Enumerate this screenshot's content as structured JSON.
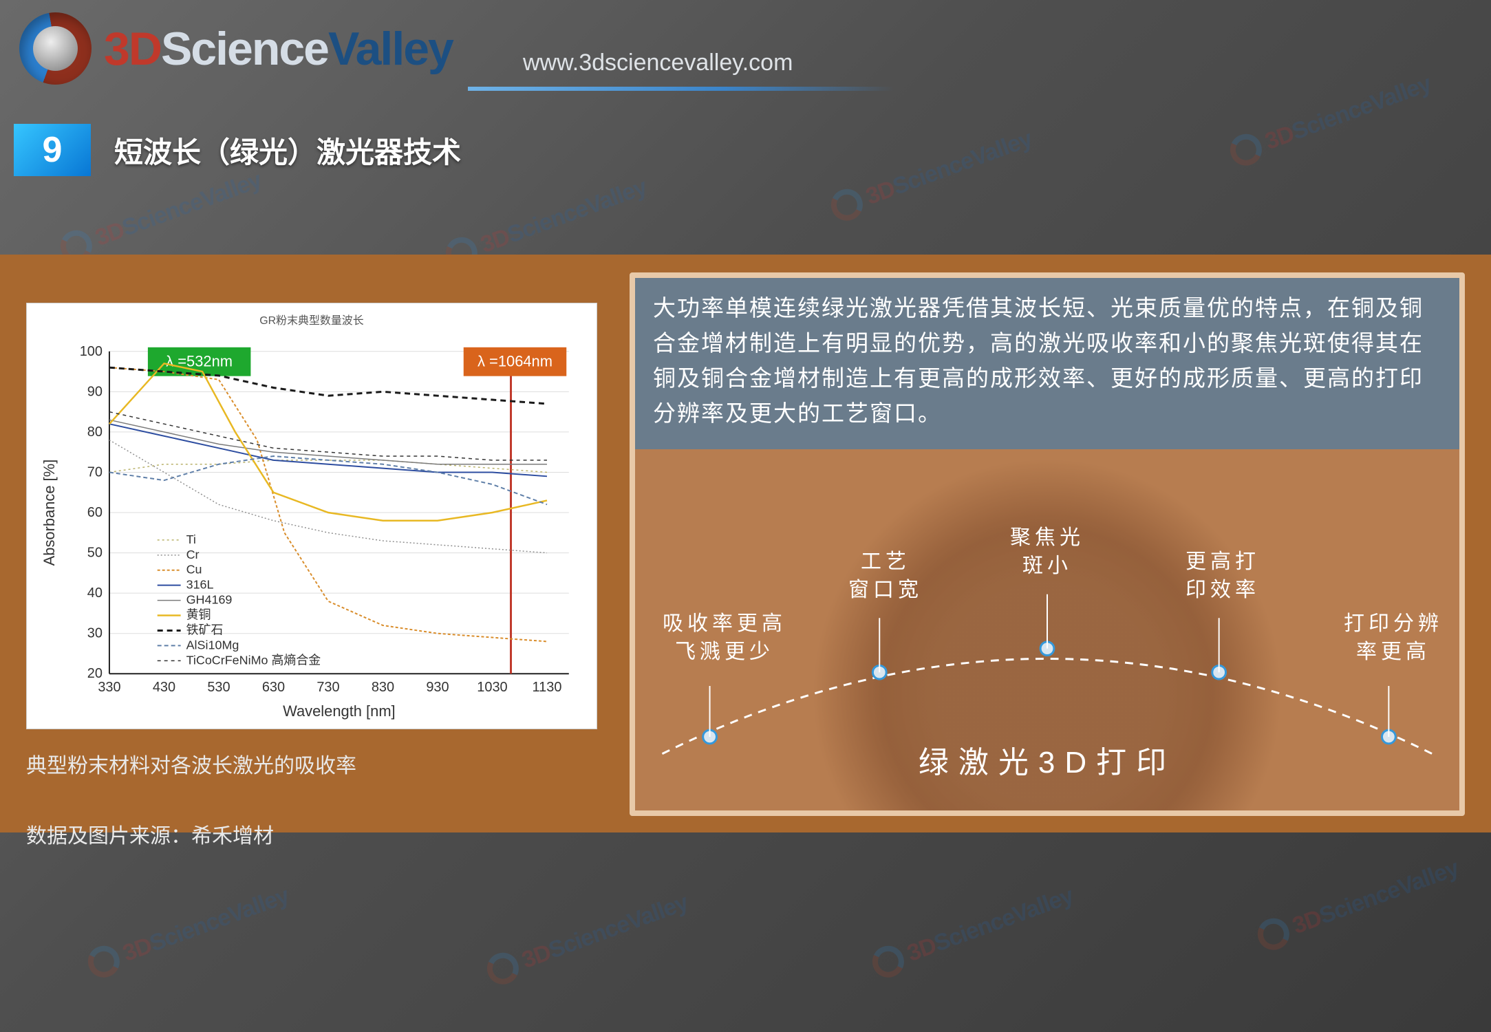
{
  "logo": {
    "brand_3d": "3D",
    "brand_science": "Science",
    "brand_valley": "Valley"
  },
  "url": "www.3dsciencevalley.com",
  "section": {
    "num": "9",
    "title": "短波长（绿光）激光器技术"
  },
  "chart": {
    "type": "line",
    "title": "GR粉末典型数量波长",
    "xlabel": "Wavelength [nm]",
    "ylabel": "Absorbance [%]",
    "xlim": [
      330,
      1170
    ],
    "xtick_step": 100,
    "xtick_start": 330,
    "ylim": [
      20,
      100
    ],
    "ytick_step": 10,
    "series": [
      {
        "name": "Ti",
        "color": "#b9b26a",
        "dash": "3 4",
        "width": 1.5,
        "pts": [
          [
            330,
            70
          ],
          [
            430,
            72
          ],
          [
            530,
            72
          ],
          [
            630,
            73
          ],
          [
            730,
            73
          ],
          [
            830,
            73
          ],
          [
            930,
            72
          ],
          [
            1030,
            71
          ],
          [
            1130,
            70
          ]
        ]
      },
      {
        "name": "Cr",
        "color": "#8f8f8f",
        "dash": "2 3",
        "width": 1.5,
        "pts": [
          [
            330,
            78
          ],
          [
            430,
            70
          ],
          [
            530,
            62
          ],
          [
            630,
            58
          ],
          [
            730,
            55
          ],
          [
            830,
            53
          ],
          [
            930,
            52
          ],
          [
            1030,
            51
          ],
          [
            1130,
            50
          ]
        ]
      },
      {
        "name": "Cu",
        "color": "#d98d2b",
        "dash": "4 3",
        "width": 2,
        "pts": [
          [
            330,
            96
          ],
          [
            430,
            95
          ],
          [
            530,
            93
          ],
          [
            600,
            78
          ],
          [
            650,
            55
          ],
          [
            730,
            38
          ],
          [
            830,
            32
          ],
          [
            930,
            30
          ],
          [
            1030,
            29
          ],
          [
            1130,
            28
          ]
        ]
      },
      {
        "name": "316L",
        "color": "#2d4da0",
        "dash": "",
        "width": 2,
        "pts": [
          [
            330,
            82
          ],
          [
            430,
            79
          ],
          [
            530,
            76
          ],
          [
            630,
            73
          ],
          [
            730,
            72
          ],
          [
            830,
            71
          ],
          [
            930,
            70
          ],
          [
            1030,
            70
          ],
          [
            1130,
            69
          ]
        ]
      },
      {
        "name": "GH4169",
        "color": "#7b7b7b",
        "dash": "",
        "width": 1.5,
        "pts": [
          [
            330,
            83
          ],
          [
            430,
            80
          ],
          [
            530,
            77
          ],
          [
            630,
            75
          ],
          [
            730,
            74
          ],
          [
            830,
            73
          ],
          [
            930,
            72
          ],
          [
            1030,
            72
          ],
          [
            1130,
            72
          ]
        ]
      },
      {
        "name": "黄铜",
        "color": "#e8b823",
        "dash": "",
        "width": 2.5,
        "pts": [
          [
            330,
            82
          ],
          [
            430,
            97
          ],
          [
            500,
            95
          ],
          [
            560,
            80
          ],
          [
            630,
            65
          ],
          [
            730,
            60
          ],
          [
            830,
            58
          ],
          [
            930,
            58
          ],
          [
            1030,
            60
          ],
          [
            1130,
            63
          ]
        ]
      },
      {
        "name": "铁矿石",
        "color": "#1a1a1a",
        "dash": "8 6",
        "width": 3,
        "pts": [
          [
            330,
            96
          ],
          [
            430,
            95
          ],
          [
            530,
            94
          ],
          [
            630,
            91
          ],
          [
            730,
            89
          ],
          [
            830,
            90
          ],
          [
            930,
            89
          ],
          [
            1030,
            88
          ],
          [
            1130,
            87
          ]
        ]
      },
      {
        "name": "AlSi10Mg",
        "color": "#5f7fa8",
        "dash": "6 4",
        "width": 2,
        "pts": [
          [
            330,
            70
          ],
          [
            430,
            68
          ],
          [
            530,
            72
          ],
          [
            630,
            74
          ],
          [
            730,
            73
          ],
          [
            830,
            72
          ],
          [
            930,
            70
          ],
          [
            1030,
            67
          ],
          [
            1130,
            62
          ]
        ]
      },
      {
        "name": "TiCoCrFeNiMo 高熵合金",
        "color": "#333333",
        "dash": "5 5",
        "width": 1.5,
        "pts": [
          [
            330,
            85
          ],
          [
            430,
            82
          ],
          [
            530,
            79
          ],
          [
            630,
            76
          ],
          [
            730,
            75
          ],
          [
            830,
            74
          ],
          [
            930,
            74
          ],
          [
            1030,
            73
          ],
          [
            1130,
            73
          ]
        ]
      }
    ],
    "markers": [
      {
        "x": 532,
        "label": "λ =532nm",
        "fill": "#1ea82e",
        "text": "#ffffff"
      },
      {
        "x": 1064,
        "label": "λ =1064nm",
        "fill": "#d9641c",
        "text": "#ffffff",
        "line": "#c0392b"
      }
    ],
    "grid_color": "#dddddd",
    "axis_color": "#222222",
    "tick_fontsize": 20,
    "label_fontsize": 22,
    "legend_fontsize": 18
  },
  "chart_caption": "典型粉末材料对各波长激光的吸收率",
  "chart_source": "数据及图片来源：希禾增材",
  "desc": "大功率单模连续绿光激光器凭借其波长短、光束质量优的特点，在铜及铜合金增材制造上有明显的优势，高的激光吸收率和小的聚焦光斑使得其在铜及铜合金增材制造上有更高的成形效率、更好的成形质量、更高的打印分辨率及更大的工艺窗口。",
  "points": {
    "p1": "吸收率更高\n飞溅更少",
    "p2": "工艺\n窗口宽",
    "p3": "聚焦光\n斑小",
    "p4": "更高打\n印效率",
    "p5": "打印分辨\n率更高"
  },
  "big_label": "绿激光3D打印",
  "watermark": {
    "a": "3D",
    "b": "Science",
    "c": "Valley"
  }
}
